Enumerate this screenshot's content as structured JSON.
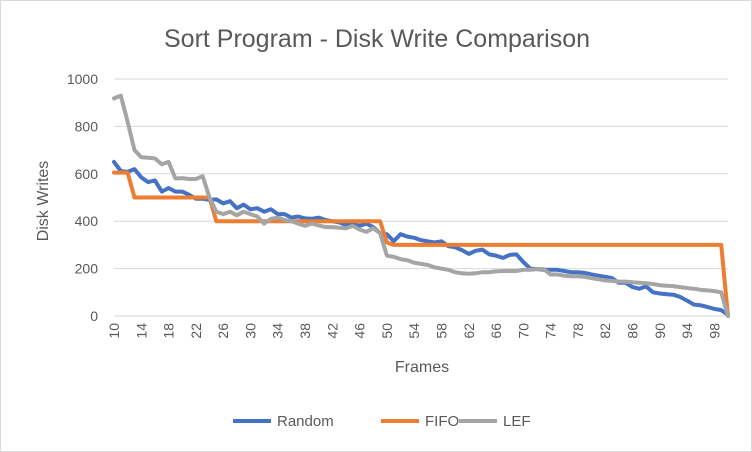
{
  "chart_data": {
    "type": "line",
    "title": "Sort Program - Disk Write Comparison",
    "xlabel": "Frames",
    "ylabel": "Disk Writes",
    "ylim": [
      0,
      1000
    ],
    "yticks": [
      "0",
      "200",
      "400",
      "600",
      "800",
      "1000"
    ],
    "grid": true,
    "legend_position": "bottom",
    "x": [
      10,
      11,
      12,
      13,
      14,
      15,
      16,
      17,
      18,
      19,
      20,
      21,
      22,
      23,
      24,
      25,
      26,
      27,
      28,
      29,
      30,
      31,
      32,
      33,
      34,
      35,
      36,
      37,
      38,
      39,
      40,
      41,
      42,
      43,
      44,
      45,
      46,
      47,
      48,
      49,
      50,
      51,
      52,
      53,
      54,
      55,
      56,
      57,
      58,
      59,
      60,
      61,
      62,
      63,
      64,
      65,
      66,
      67,
      68,
      69,
      70,
      71,
      72,
      73,
      74,
      75,
      76,
      77,
      78,
      79,
      80,
      81,
      82,
      83,
      84,
      85,
      86,
      87,
      88,
      89,
      90,
      91,
      92,
      93,
      94,
      95,
      96,
      97,
      98,
      99,
      100
    ],
    "xtick_labels": [
      "10",
      "14",
      "18",
      "22",
      "26",
      "30",
      "34",
      "38",
      "42",
      "46",
      "50",
      "54",
      "58",
      "62",
      "66",
      "70",
      "74",
      "78",
      "82",
      "86",
      "90",
      "94",
      "98"
    ],
    "series": [
      {
        "name": "Random",
        "color": "#4472c4",
        "values": [
          650,
          612,
          608,
          620,
          585,
          565,
          572,
          525,
          540,
          525,
          525,
          512,
          495,
          495,
          490,
          492,
          475,
          485,
          455,
          470,
          450,
          455,
          440,
          450,
          430,
          430,
          415,
          420,
          412,
          410,
          415,
          405,
          400,
          395,
          385,
          390,
          380,
          390,
          375,
          350,
          345,
          315,
          345,
          335,
          330,
          320,
          315,
          310,
          315,
          295,
          290,
          278,
          262,
          275,
          280,
          260,
          255,
          245,
          258,
          260,
          228,
          200,
          198,
          195,
          195,
          195,
          190,
          185,
          185,
          182,
          175,
          170,
          165,
          160,
          140,
          140,
          122,
          115,
          125,
          100,
          95,
          92,
          90,
          80,
          65,
          48,
          45,
          38,
          30,
          25,
          5
        ]
      },
      {
        "name": "FIFO",
        "color": "#ed7d31",
        "values": [
          605,
          605,
          605,
          500,
          500,
          500,
          500,
          500,
          500,
          500,
          500,
          500,
          500,
          500,
          500,
          400,
          400,
          400,
          400,
          400,
          400,
          400,
          400,
          400,
          400,
          400,
          400,
          400,
          400,
          400,
          400,
          400,
          400,
          400,
          400,
          400,
          400,
          400,
          400,
          400,
          310,
          300,
          300,
          300,
          300,
          300,
          300,
          300,
          300,
          300,
          300,
          300,
          300,
          300,
          300,
          300,
          300,
          300,
          300,
          300,
          300,
          300,
          300,
          300,
          300,
          300,
          300,
          300,
          300,
          300,
          300,
          300,
          300,
          300,
          300,
          300,
          300,
          300,
          300,
          300,
          300,
          300,
          300,
          300,
          300,
          300,
          300,
          300,
          300,
          300,
          0
        ]
      },
      {
        "name": "LEF",
        "color": "#a5a5a5",
        "values": [
          918,
          930,
          820,
          700,
          670,
          668,
          665,
          640,
          650,
          580,
          582,
          578,
          578,
          590,
          500,
          440,
          430,
          440,
          425,
          440,
          430,
          420,
          390,
          410,
          415,
          405,
          400,
          390,
          380,
          390,
          382,
          375,
          375,
          372,
          370,
          380,
          365,
          355,
          370,
          350,
          255,
          250,
          240,
          235,
          225,
          220,
          215,
          205,
          200,
          195,
          185,
          180,
          178,
          180,
          185,
          185,
          188,
          190,
          190,
          190,
          195,
          195,
          198,
          198,
          175,
          175,
          170,
          168,
          168,
          165,
          160,
          155,
          150,
          148,
          145,
          145,
          142,
          140,
          138,
          135,
          130,
          128,
          126,
          122,
          118,
          115,
          110,
          108,
          105,
          100,
          0
        ]
      }
    ]
  }
}
